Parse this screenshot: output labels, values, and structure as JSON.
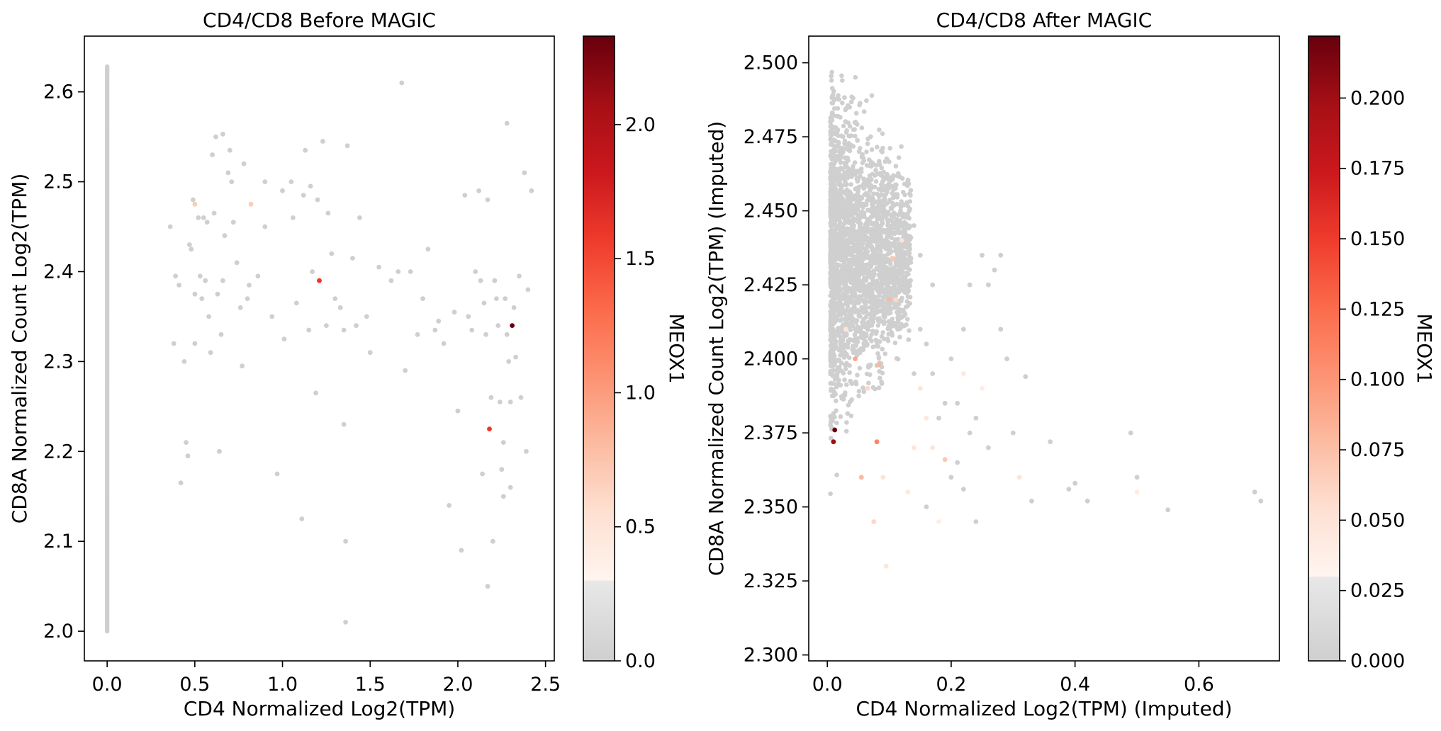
{
  "chart_data": [
    {
      "type": "scatter",
      "title": "CD4/CD8 Before MAGIC",
      "xlabel": "CD4 Normalized Log2(TPM)",
      "ylabel": "CD8A Normalized Count Log2(TPM)",
      "xlim": [
        -0.13,
        2.55
      ],
      "ylim": [
        1.967,
        2.662
      ],
      "xticks": [
        0.0,
        0.5,
        1.0,
        1.5,
        2.0,
        2.5
      ],
      "xtick_labels": [
        "0.0",
        "0.5",
        "1.0",
        "1.5",
        "2.0",
        "2.5"
      ],
      "yticks": [
        2.0,
        2.1,
        2.2,
        2.3,
        2.4,
        2.5,
        2.6
      ],
      "ytick_labels": [
        "2.0",
        "2.1",
        "2.2",
        "2.3",
        "2.4",
        "2.5",
        "2.6"
      ],
      "colorbar": {
        "label": "MEOX1",
        "range": [
          0.0,
          2.33
        ],
        "ticks": [
          0.0,
          0.5,
          1.0,
          1.5,
          2.0
        ],
        "tick_labels": [
          "0.0",
          "0.5",
          "1.0",
          "1.5",
          "2.0"
        ],
        "grey_below": 0.3,
        "colormap": "Reds"
      },
      "zero_column": {
        "x": 0.0,
        "y_min": 2.0,
        "y_max": 2.628,
        "color": 0.0
      },
      "points": [
        [
          0.36,
          2.45,
          0
        ],
        [
          0.38,
          2.32,
          0
        ],
        [
          0.39,
          2.395,
          0
        ],
        [
          0.41,
          2.385,
          0
        ],
        [
          0.42,
          2.165,
          0
        ],
        [
          0.44,
          2.3,
          0
        ],
        [
          0.45,
          2.21,
          0
        ],
        [
          0.46,
          2.195,
          0
        ],
        [
          0.47,
          2.43,
          0
        ],
        [
          0.48,
          2.425,
          0
        ],
        [
          0.49,
          2.48,
          0
        ],
        [
          0.5,
          2.475,
          0.7
        ],
        [
          0.5,
          2.375,
          0
        ],
        [
          0.5,
          2.32,
          0
        ],
        [
          0.52,
          2.46,
          0
        ],
        [
          0.53,
          2.395,
          0
        ],
        [
          0.54,
          2.37,
          0
        ],
        [
          0.55,
          2.46,
          0
        ],
        [
          0.56,
          2.39,
          0
        ],
        [
          0.57,
          2.455,
          0
        ],
        [
          0.58,
          2.35,
          0
        ],
        [
          0.59,
          2.31,
          0
        ],
        [
          0.6,
          2.53,
          0
        ],
        [
          0.61,
          2.465,
          0
        ],
        [
          0.62,
          2.55,
          0
        ],
        [
          0.63,
          2.375,
          0
        ],
        [
          0.64,
          2.2,
          0
        ],
        [
          0.65,
          2.33,
          0
        ],
        [
          0.66,
          2.39,
          0
        ],
        [
          0.66,
          2.553,
          0
        ],
        [
          0.67,
          2.44,
          0
        ],
        [
          0.69,
          2.51,
          0
        ],
        [
          0.7,
          2.535,
          0
        ],
        [
          0.71,
          2.5,
          0
        ],
        [
          0.72,
          2.455,
          0
        ],
        [
          0.74,
          2.41,
          0
        ],
        [
          0.76,
          2.36,
          0
        ],
        [
          0.77,
          2.295,
          0
        ],
        [
          0.78,
          2.52,
          0
        ],
        [
          0.8,
          2.37,
          0
        ],
        [
          0.81,
          2.385,
          0
        ],
        [
          0.82,
          2.475,
          0.7
        ],
        [
          0.86,
          2.395,
          0
        ],
        [
          0.9,
          2.5,
          0
        ],
        [
          0.9,
          2.45,
          0
        ],
        [
          0.94,
          2.35,
          0
        ],
        [
          0.97,
          2.175,
          0
        ],
        [
          1.0,
          2.49,
          0
        ],
        [
          1.01,
          2.325,
          0
        ],
        [
          1.05,
          2.5,
          0
        ],
        [
          1.06,
          2.46,
          0
        ],
        [
          1.08,
          2.365,
          0
        ],
        [
          1.11,
          2.125,
          0
        ],
        [
          1.12,
          2.485,
          0
        ],
        [
          1.13,
          2.535,
          0
        ],
        [
          1.15,
          2.335,
          0
        ],
        [
          1.16,
          2.495,
          0
        ],
        [
          1.17,
          2.4,
          0
        ],
        [
          1.19,
          2.265,
          0
        ],
        [
          1.2,
          2.48,
          0
        ],
        [
          1.21,
          2.39,
          1.6
        ],
        [
          1.23,
          2.545,
          0
        ],
        [
          1.25,
          2.34,
          0
        ],
        [
          1.26,
          2.465,
          0
        ],
        [
          1.28,
          2.42,
          0
        ],
        [
          1.3,
          2.37,
          0
        ],
        [
          1.33,
          2.36,
          0
        ],
        [
          1.35,
          2.335,
          0
        ],
        [
          1.35,
          2.23,
          0
        ],
        [
          1.36,
          2.1,
          0
        ],
        [
          1.36,
          2.01,
          0
        ],
        [
          1.37,
          2.54,
          0
        ],
        [
          1.4,
          2.415,
          0
        ],
        [
          1.42,
          2.34,
          0
        ],
        [
          1.44,
          2.46,
          0
        ],
        [
          1.48,
          2.35,
          0
        ],
        [
          1.5,
          2.31,
          0
        ],
        [
          1.55,
          2.405,
          0
        ],
        [
          1.62,
          2.39,
          0
        ],
        [
          1.66,
          2.4,
          0
        ],
        [
          1.68,
          2.61,
          0
        ],
        [
          1.7,
          2.29,
          0
        ],
        [
          1.73,
          2.4,
          0
        ],
        [
          1.77,
          2.33,
          0
        ],
        [
          1.8,
          2.37,
          0
        ],
        [
          1.83,
          2.425,
          0
        ],
        [
          1.87,
          2.335,
          0
        ],
        [
          1.89,
          2.345,
          0
        ],
        [
          1.92,
          2.32,
          0
        ],
        [
          1.95,
          2.14,
          0
        ],
        [
          1.98,
          2.355,
          0
        ],
        [
          2.0,
          2.245,
          0
        ],
        [
          2.02,
          2.09,
          0
        ],
        [
          2.04,
          2.485,
          0
        ],
        [
          2.06,
          2.35,
          0
        ],
        [
          2.08,
          2.335,
          0
        ],
        [
          2.1,
          2.4,
          0
        ],
        [
          2.12,
          2.49,
          0
        ],
        [
          2.13,
          2.39,
          0
        ],
        [
          2.14,
          2.175,
          0
        ],
        [
          2.15,
          2.365,
          0
        ],
        [
          2.16,
          2.33,
          0
        ],
        [
          2.17,
          2.48,
          0
        ],
        [
          2.18,
          2.225,
          1.6
        ],
        [
          2.19,
          2.26,
          0
        ],
        [
          2.2,
          2.1,
          0
        ],
        [
          2.21,
          2.39,
          0
        ],
        [
          2.22,
          2.37,
          0
        ],
        [
          2.23,
          2.34,
          0
        ],
        [
          2.24,
          2.255,
          0
        ],
        [
          2.25,
          2.18,
          0
        ],
        [
          2.26,
          2.15,
          0
        ],
        [
          2.27,
          2.37,
          0
        ],
        [
          2.28,
          2.565,
          0
        ],
        [
          2.29,
          2.3,
          0
        ],
        [
          2.3,
          2.255,
          0
        ],
        [
          2.31,
          2.34,
          2.33
        ],
        [
          2.32,
          2.36,
          0
        ],
        [
          2.33,
          2.305,
          0
        ],
        [
          2.35,
          2.395,
          0
        ],
        [
          2.36,
          2.26,
          0
        ],
        [
          2.38,
          2.51,
          0
        ],
        [
          2.39,
          2.2,
          0
        ],
        [
          2.4,
          2.38,
          0
        ],
        [
          2.42,
          2.49,
          0
        ],
        [
          2.17,
          2.05,
          0
        ],
        [
          2.28,
          2.33,
          0
        ],
        [
          2.3,
          2.16,
          0
        ],
        [
          2.26,
          2.21,
          0
        ]
      ]
    },
    {
      "type": "scatter",
      "title": "CD4/CD8 After MAGIC",
      "xlabel": "CD4 Normalized Log2(TPM) (Imputed)",
      "ylabel": "CD8A Normalized Count  Log2(TPM) (Imputed)",
      "xlim": [
        -0.03,
        0.73
      ],
      "ylim": [
        2.298,
        2.509
      ],
      "xticks": [
        0.0,
        0.2,
        0.4,
        0.6
      ],
      "xtick_labels": [
        "0.0",
        "0.2",
        "0.4",
        "0.6"
      ],
      "yticks": [
        2.3,
        2.325,
        2.35,
        2.375,
        2.4,
        2.425,
        2.45,
        2.475,
        2.5
      ],
      "ytick_labels": [
        "2.300",
        "2.325",
        "2.350",
        "2.375",
        "2.400",
        "2.425",
        "2.450",
        "2.475",
        "2.500"
      ],
      "colorbar": {
        "label": "MEOX1",
        "range": [
          0.0,
          0.222
        ],
        "ticks": [
          0.0,
          0.025,
          0.05,
          0.075,
          0.1,
          0.125,
          0.15,
          0.175,
          0.2
        ],
        "tick_labels": [
          "0.000",
          "0.025",
          "0.050",
          "0.075",
          "0.100",
          "0.125",
          "0.150",
          "0.175",
          "0.200"
        ],
        "grey_below": 0.03,
        "colormap": "Reds"
      },
      "cloud": {
        "x_range": [
          0.0,
          0.13
        ],
        "y_range": [
          2.31,
          2.497
        ],
        "peak_y": 2.42,
        "n": 2600
      },
      "points": [
        [
          0.012,
          2.376,
          0.222
        ],
        [
          0.01,
          2.372,
          0.2
        ],
        [
          0.045,
          2.4,
          0.09
        ],
        [
          0.08,
          2.372,
          0.11
        ],
        [
          0.083,
          2.398,
          0.08
        ],
        [
          0.055,
          2.36,
          0.08
        ],
        [
          0.1,
          2.42,
          0.08
        ],
        [
          0.105,
          2.434,
          0.07
        ],
        [
          0.11,
          2.42,
          0.06
        ],
        [
          0.065,
          2.39,
          0.06
        ],
        [
          0.09,
          2.36,
          0.05
        ],
        [
          0.14,
          2.37,
          0.05
        ],
        [
          0.16,
          2.38,
          0.045
        ],
        [
          0.17,
          2.37,
          0.05
        ],
        [
          0.19,
          2.366,
          0.07
        ],
        [
          0.12,
          2.44,
          0.05
        ],
        [
          0.22,
          2.395,
          0.045
        ],
        [
          0.25,
          2.39,
          0.04
        ],
        [
          0.31,
          2.36,
          0.05
        ],
        [
          0.5,
          2.355,
          0.04
        ],
        [
          0.075,
          2.345,
          0.06
        ],
        [
          0.095,
          2.33,
          0.05
        ],
        [
          0.13,
          2.355,
          0.045
        ],
        [
          0.03,
          2.41,
          0.05
        ],
        [
          0.15,
          2.39,
          0.05
        ],
        [
          0.18,
          2.345,
          0.04
        ],
        [
          0.14,
          2.395,
          0
        ],
        [
          0.15,
          2.41,
          0
        ],
        [
          0.16,
          2.405,
          0
        ],
        [
          0.17,
          2.395,
          0
        ],
        [
          0.18,
          2.38,
          0
        ],
        [
          0.19,
          2.385,
          0
        ],
        [
          0.2,
          2.4,
          0
        ],
        [
          0.21,
          2.385,
          0
        ],
        [
          0.22,
          2.41,
          0
        ],
        [
          0.23,
          2.375,
          0
        ],
        [
          0.24,
          2.38,
          0
        ],
        [
          0.25,
          2.435,
          0
        ],
        [
          0.26,
          2.425,
          0
        ],
        [
          0.27,
          2.43,
          0
        ],
        [
          0.28,
          2.435,
          0
        ],
        [
          0.28,
          2.41,
          0
        ],
        [
          0.29,
          2.4,
          0
        ],
        [
          0.3,
          2.375,
          0
        ],
        [
          0.32,
          2.394,
          0
        ],
        [
          0.33,
          2.352,
          0
        ],
        [
          0.36,
          2.372,
          0
        ],
        [
          0.39,
          2.356,
          0
        ],
        [
          0.4,
          2.358,
          0
        ],
        [
          0.42,
          2.352,
          0
        ],
        [
          0.5,
          2.36,
          0
        ],
        [
          0.55,
          2.349,
          0
        ],
        [
          0.69,
          2.355,
          0
        ],
        [
          0.7,
          2.352,
          0
        ],
        [
          0.49,
          2.375,
          0
        ],
        [
          0.23,
          2.425,
          0
        ],
        [
          0.17,
          2.425,
          0
        ],
        [
          0.15,
          2.435,
          0
        ],
        [
          0.14,
          2.445,
          0
        ],
        [
          0.13,
          2.46,
          0
        ],
        [
          0.16,
          2.35,
          0
        ],
        [
          0.2,
          2.36,
          0
        ],
        [
          0.21,
          2.365,
          0
        ],
        [
          0.26,
          2.37,
          0
        ],
        [
          0.22,
          2.356,
          0
        ],
        [
          0.24,
          2.345,
          0
        ]
      ]
    }
  ]
}
